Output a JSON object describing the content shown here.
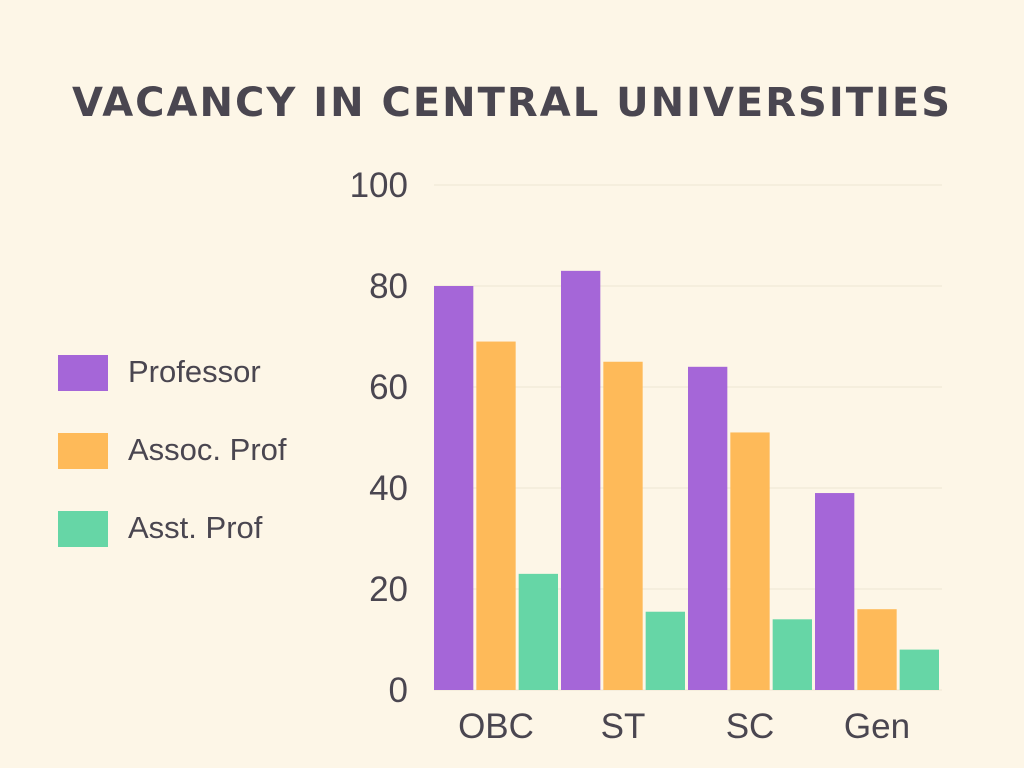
{
  "colors": {
    "background": "#fdf6e7",
    "gridline": "#ede5d3",
    "axis_line": "#f6eedd",
    "text": "#4a4650"
  },
  "chart_data": {
    "type": "bar",
    "title": "VACANCY IN CENTRAL UNIVERSITIES",
    "xlabel": "",
    "ylabel": "",
    "categories": [
      "OBC",
      "ST",
      "SC",
      "Gen"
    ],
    "series": [
      {
        "name": "Professor",
        "color": "#a566d8",
        "values": [
          80,
          83,
          64,
          39
        ]
      },
      {
        "name": "Assoc. Prof",
        "color": "#feba59",
        "values": [
          69,
          65,
          51,
          16
        ]
      },
      {
        "name": "Asst. Prof",
        "color": "#66d6a6",
        "values": [
          23,
          15.5,
          14,
          8
        ]
      }
    ],
    "ylim": [
      0,
      100
    ],
    "yticks": [
      "0",
      "20",
      "40",
      "60",
      "80",
      "100"
    ],
    "grid": true,
    "legend_position": "left"
  }
}
